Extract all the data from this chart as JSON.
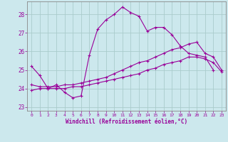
{
  "xlabel": "Windchill (Refroidissement éolien,°C)",
  "background_color": "#cce8ed",
  "grid_color": "#aacccc",
  "line_color": "#990099",
  "xlim": [
    -0.5,
    23.5
  ],
  "ylim": [
    22.8,
    28.7
  ],
  "xticks": [
    0,
    1,
    2,
    3,
    4,
    5,
    6,
    7,
    8,
    9,
    10,
    11,
    12,
    13,
    14,
    15,
    16,
    17,
    18,
    19,
    20,
    21,
    22,
    23
  ],
  "yticks": [
    23,
    24,
    25,
    26,
    27,
    28
  ],
  "line1_x": [
    0,
    1,
    2,
    3,
    4,
    5,
    6,
    7,
    8,
    9,
    10,
    11,
    12,
    13,
    14,
    15,
    16,
    17,
    18,
    19,
    20,
    21,
    22
  ],
  "line1_y": [
    25.2,
    24.7,
    24.0,
    24.2,
    23.8,
    23.5,
    23.6,
    25.8,
    27.2,
    27.7,
    28.0,
    28.4,
    28.1,
    27.9,
    27.1,
    27.3,
    27.3,
    26.9,
    26.3,
    25.9,
    25.8,
    25.7,
    25.0
  ],
  "line2_x": [
    0,
    1,
    2,
    3,
    4,
    5,
    6,
    7,
    8,
    9,
    10,
    11,
    12,
    13,
    14,
    15,
    16,
    17,
    18,
    19,
    20,
    21,
    22,
    23
  ],
  "line2_y": [
    24.2,
    24.1,
    24.1,
    24.1,
    24.2,
    24.2,
    24.3,
    24.4,
    24.5,
    24.6,
    24.8,
    25.0,
    25.2,
    25.4,
    25.5,
    25.7,
    25.9,
    26.1,
    26.2,
    26.4,
    26.5,
    25.9,
    25.7,
    25.0
  ],
  "line3_x": [
    0,
    1,
    2,
    3,
    4,
    5,
    6,
    7,
    8,
    9,
    10,
    11,
    12,
    13,
    14,
    15,
    16,
    17,
    18,
    19,
    20,
    21,
    22,
    23
  ],
  "line3_y": [
    23.9,
    24.0,
    24.0,
    24.0,
    24.0,
    24.1,
    24.1,
    24.2,
    24.3,
    24.4,
    24.5,
    24.6,
    24.7,
    24.8,
    25.0,
    25.1,
    25.3,
    25.4,
    25.5,
    25.7,
    25.7,
    25.6,
    25.4,
    24.9
  ]
}
